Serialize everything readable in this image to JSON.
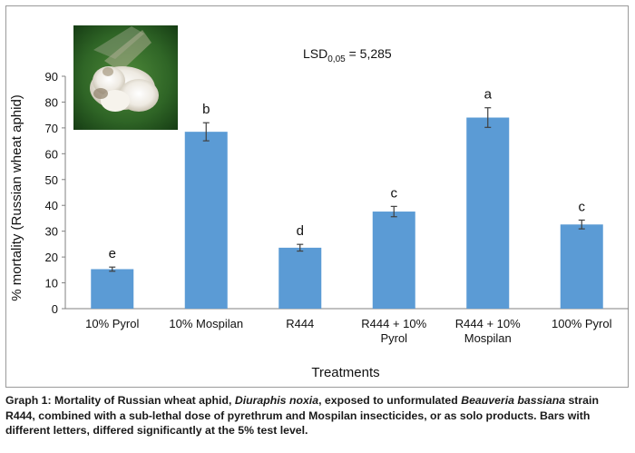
{
  "chart_data": {
    "type": "bar",
    "categories": [
      "10% Pyrol",
      "10% Mospilan",
      "R444",
      "R444 + 10%\nPyrol",
      "R444 + 10%\nMospilan",
      "100% Pyrol"
    ],
    "values": [
      15.3,
      68.5,
      23.6,
      37.6,
      74.0,
      32.6
    ],
    "errors": [
      0.8,
      3.5,
      1.3,
      2.0,
      3.8,
      1.7
    ],
    "letters": [
      "e",
      "b",
      "d",
      "c",
      "a",
      "c"
    ],
    "ylabel": "% mortality (Russian wheat aphid)",
    "xlabel": "Treatments",
    "ylim": [
      0,
      90
    ],
    "yticks": [
      0,
      10,
      20,
      30,
      40,
      50,
      60,
      70,
      80,
      90
    ],
    "annotation": {
      "lsd_prefix": "LSD",
      "lsd_subscript": "0,05",
      "lsd_value": " = 5,285"
    },
    "bar_color": "#5b9bd5",
    "error_bar_color": "#404040",
    "grid": false,
    "inset_image": "aphid-infected-with-fungus-photo"
  },
  "caption": {
    "part1": "Graph 1: Mortality of Russian wheat aphid, ",
    "italic1": "Diuraphis noxia",
    "part2": ", exposed to unformulated ",
    "italic2": "Beauveria bassiana",
    "part3": " strain R444, combined with a sub-lethal dose of pyrethrum and Mospilan insecticides, or as solo products. Bars with different letters, differed significantly at the 5% test level."
  }
}
